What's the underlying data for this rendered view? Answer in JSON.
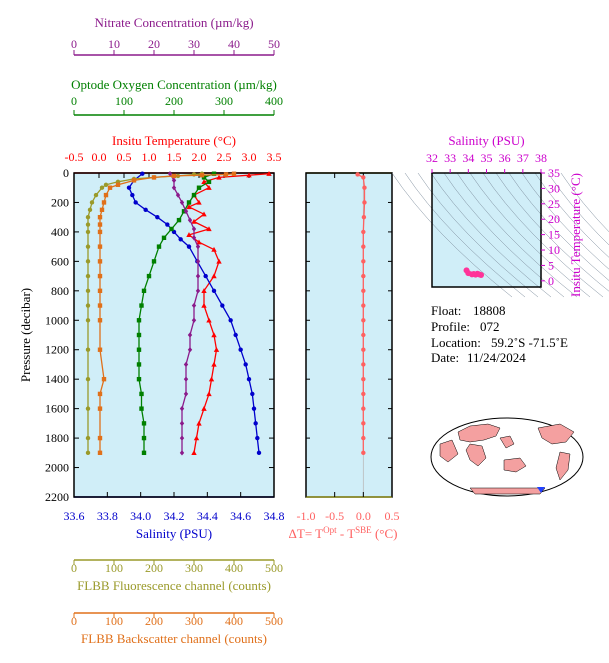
{
  "chart_data": [
    {
      "type": "line",
      "y_axis": {
        "label": "Pressure (decibar)",
        "range": [
          0,
          2200
        ],
        "ticks": [
          0,
          200,
          400,
          600,
          800,
          1000,
          1200,
          1400,
          1600,
          1800,
          2000,
          2200
        ],
        "inverted": true
      },
      "x_axes": [
        {
          "key": "nitrate",
          "label": "Nitrate Concentration (µm/kg)",
          "range": [
            0,
            50
          ],
          "ticks": [
            0,
            10,
            20,
            30,
            40,
            50
          ],
          "color": "#8b1a8b"
        },
        {
          "key": "oxygen",
          "label": "Optode Oxygen Concentration (µm/kg)",
          "range": [
            0,
            400
          ],
          "ticks": [
            0,
            100,
            200,
            300,
            400
          ],
          "color": "#008000"
        },
        {
          "key": "temperature",
          "label": "Insitu Temperature (°C)",
          "range": [
            -0.5,
            3.5
          ],
          "ticks": [
            -0.5,
            0.0,
            0.5,
            1.0,
            1.5,
            2.0,
            2.5,
            3.0,
            3.5
          ],
          "color": "#ff0000"
        },
        {
          "key": "salinity",
          "label": "Salinity (PSU)",
          "range": [
            33.6,
            34.8
          ],
          "ticks": [
            33.6,
            33.8,
            34.0,
            34.2,
            34.4,
            34.6,
            34.8
          ],
          "color": "#0000cc"
        },
        {
          "key": "fluorescence",
          "label": "FLBB Fluorescence channel (counts)",
          "range": [
            0,
            500
          ],
          "ticks": [
            0,
            100,
            200,
            300,
            400,
            500
          ],
          "color": "#9a9a2a"
        },
        {
          "key": "backscatter",
          "label": "FLBB Backscatter channel (counts)",
          "range": [
            0,
            500
          ],
          "ticks": [
            0,
            100,
            200,
            300,
            400,
            500
          ],
          "color": "#e0701a"
        }
      ],
      "series": [
        {
          "key": "temperature",
          "axis": "temperature",
          "color": "#ff0000",
          "marker": "triangle",
          "points": [
            [
              3.4,
              5
            ],
            [
              3.0,
              15
            ],
            [
              2.4,
              30
            ],
            [
              2.1,
              60
            ],
            [
              2.2,
              100
            ],
            [
              1.9,
              150
            ],
            [
              2.0,
              200
            ],
            [
              1.8,
              230
            ],
            [
              2.1,
              280
            ],
            [
              1.9,
              330
            ],
            [
              2.2,
              380
            ],
            [
              1.8,
              420
            ],
            [
              2.0,
              470
            ],
            [
              2.3,
              520
            ],
            [
              2.4,
              600
            ],
            [
              2.3,
              700
            ],
            [
              2.1,
              800
            ],
            [
              2.1,
              900
            ],
            [
              2.2,
              1000
            ],
            [
              2.3,
              1100
            ],
            [
              2.35,
              1200
            ],
            [
              2.3,
              1300
            ],
            [
              2.25,
              1400
            ],
            [
              2.2,
              1500
            ],
            [
              2.1,
              1600
            ],
            [
              2.0,
              1700
            ],
            [
              1.95,
              1800
            ],
            [
              1.9,
              1900
            ]
          ]
        },
        {
          "key": "salinity",
          "axis": "salinity",
          "color": "#0000cc",
          "marker": "circle",
          "points": [
            [
              34.01,
              5
            ],
            [
              33.96,
              50
            ],
            [
              33.93,
              100
            ],
            [
              33.95,
              150
            ],
            [
              33.97,
              200
            ],
            [
              34.03,
              250
            ],
            [
              34.1,
              300
            ],
            [
              34.16,
              350
            ],
            [
              34.2,
              400
            ],
            [
              34.24,
              450
            ],
            [
              34.29,
              500
            ],
            [
              34.34,
              600
            ],
            [
              34.39,
              700
            ],
            [
              34.44,
              800
            ],
            [
              34.49,
              900
            ],
            [
              34.54,
              1000
            ],
            [
              34.57,
              1100
            ],
            [
              34.6,
              1200
            ],
            [
              34.63,
              1300
            ],
            [
              34.65,
              1400
            ],
            [
              34.67,
              1500
            ],
            [
              34.68,
              1600
            ],
            [
              34.69,
              1700
            ],
            [
              34.7,
              1800
            ],
            [
              34.71,
              1900
            ]
          ]
        },
        {
          "key": "oxygen",
          "axis": "oxygen",
          "color": "#008000",
          "marker": "square",
          "points": [
            [
              280,
              5
            ],
            [
              260,
              30
            ],
            [
              270,
              60
            ],
            [
              250,
              100
            ],
            [
              240,
              150
            ],
            [
              230,
              200
            ],
            [
              220,
              260
            ],
            [
              210,
              320
            ],
            [
              195,
              380
            ],
            [
              180,
              440
            ],
            [
              170,
              500
            ],
            [
              160,
              600
            ],
            [
              150,
              700
            ],
            [
              140,
              800
            ],
            [
              135,
              900
            ],
            [
              130,
              1000
            ],
            [
              130,
              1100
            ],
            [
              130,
              1200
            ],
            [
              130,
              1300
            ],
            [
              130,
              1400
            ],
            [
              135,
              1500
            ],
            [
              135,
              1600
            ],
            [
              140,
              1700
            ],
            [
              140,
              1800
            ],
            [
              140,
              1900
            ]
          ]
        },
        {
          "key": "nitrate",
          "axis": "nitrate",
          "color": "#8b1a8b",
          "marker": "diamond",
          "points": [
            [
              24,
              5
            ],
            [
              25,
              50
            ],
            [
              25,
              100
            ],
            [
              26,
              150
            ],
            [
              27,
              200
            ],
            [
              28,
              260
            ],
            [
              29,
              320
            ],
            [
              30,
              380
            ],
            [
              30,
              440
            ],
            [
              31,
              500
            ],
            [
              31,
              600
            ],
            [
              31,
              700
            ],
            [
              31,
              800
            ],
            [
              30,
              900
            ],
            [
              30,
              1000
            ],
            [
              29,
              1100
            ],
            [
              29,
              1200
            ],
            [
              28,
              1300
            ],
            [
              28,
              1400
            ],
            [
              28,
              1500
            ],
            [
              27,
              1600
            ],
            [
              27,
              1700
            ],
            [
              27,
              1800
            ],
            [
              27,
              1900
            ]
          ]
        },
        {
          "key": "fluorescence",
          "axis": "fluorescence",
          "color": "#9a9a2a",
          "marker": "circle",
          "points": [
            [
              320,
              5
            ],
            [
              300,
              10
            ],
            [
              260,
              20
            ],
            [
              200,
              30
            ],
            [
              150,
              40
            ],
            [
              110,
              60
            ],
            [
              80,
              80
            ],
            [
              70,
              100
            ],
            [
              55,
              150
            ],
            [
              45,
              200
            ],
            [
              40,
              250
            ],
            [
              35,
              300
            ],
            [
              35,
              350
            ],
            [
              35,
              400
            ],
            [
              35,
              500
            ],
            [
              35,
              600
            ],
            [
              35,
              700
            ],
            [
              35,
              800
            ],
            [
              35,
              900
            ],
            [
              35,
              1000
            ],
            [
              35,
              1200
            ],
            [
              35,
              1400
            ],
            [
              35,
              1600
            ],
            [
              35,
              1800
            ],
            [
              35,
              1900
            ]
          ]
        },
        {
          "key": "backscatter",
          "axis": "backscatter",
          "color": "#e0701a",
          "marker": "square",
          "points": [
            [
              400,
              5
            ],
            [
              380,
              10
            ],
            [
              320,
              15
            ],
            [
              250,
              20
            ],
            [
              200,
              30
            ],
            [
              150,
              50
            ],
            [
              110,
              80
            ],
            [
              90,
              100
            ],
            [
              80,
              150
            ],
            [
              75,
              200
            ],
            [
              70,
              250
            ],
            [
              65,
              300
            ],
            [
              65,
              350
            ],
            [
              65,
              400
            ],
            [
              65,
              500
            ],
            [
              65,
              600
            ],
            [
              65,
              700
            ],
            [
              65,
              800
            ],
            [
              65,
              900
            ],
            [
              65,
              1000
            ],
            [
              65,
              1200
            ],
            [
              75,
              1400
            ],
            [
              65,
              1500
            ],
            [
              65,
              1600
            ],
            [
              65,
              1800
            ],
            [
              65,
              1900
            ]
          ]
        }
      ]
    },
    {
      "type": "line",
      "x_axis": {
        "label_prefix": "ΔT= T",
        "sup1": "Opt",
        "label_mid": " - T",
        "sup2": "SBE",
        "label_suffix": " (°C)",
        "range": [
          -1.0,
          0.5
        ],
        "ticks": [
          -1.0,
          -0.5,
          0.0,
          0.5
        ],
        "color": "#ff6060"
      },
      "y_axis": {
        "range": [
          0,
          2200
        ],
        "inverted": true
      },
      "series": [
        {
          "key": "delta_t",
          "color": "#ff6060",
          "marker": "circle",
          "points": [
            [
              -0.1,
              10
            ],
            [
              0.0,
              30
            ],
            [
              0.02,
              100
            ],
            [
              0.02,
              200
            ],
            [
              0.01,
              300
            ],
            [
              0.0,
              400
            ],
            [
              0.0,
              500
            ],
            [
              0.0,
              600
            ],
            [
              0.0,
              700
            ],
            [
              0.0,
              800
            ],
            [
              0.0,
              900
            ],
            [
              0.0,
              1000
            ],
            [
              0.0,
              1100
            ],
            [
              0.0,
              1200
            ],
            [
              0.0,
              1300
            ],
            [
              0.0,
              1400
            ],
            [
              0.0,
              1500
            ],
            [
              0.0,
              1600
            ],
            [
              0.0,
              1700
            ],
            [
              0.0,
              1800
            ],
            [
              0.0,
              1900
            ]
          ]
        }
      ]
    },
    {
      "type": "scatter",
      "x_axis": {
        "label": "Salinity (PSU)",
        "range": [
          32,
          38
        ],
        "ticks": [
          32,
          33,
          34,
          35,
          36,
          37,
          38
        ],
        "color": "#cc00cc"
      },
      "y_axis": {
        "label": "Insitu Temperature (°C)",
        "range": [
          -2,
          35
        ],
        "ticks": [
          0,
          5,
          10,
          15,
          20,
          25,
          30,
          35
        ],
        "color": "#cc00cc"
      },
      "points": [
        [
          33.9,
          3.4
        ],
        [
          34.0,
          2.5
        ],
        [
          34.2,
          2.1
        ],
        [
          34.4,
          2.0
        ],
        [
          34.6,
          2.1
        ],
        [
          34.7,
          1.9
        ],
        [
          34.5,
          2.3
        ],
        [
          34.3,
          2.2
        ]
      ],
      "point_color": "#ff3399"
    }
  ],
  "info": {
    "float_label": "Float:",
    "float_value": "18808",
    "profile_label": "Profile:",
    "profile_value": "072",
    "location_label": "Location:",
    "location_value": "59.2˚S  -71.5˚E",
    "date_label": "Date:",
    "date_value": "11/24/2024"
  },
  "map": {
    "location_marker_color": "#2040ff",
    "land_color": "#f4a0a0",
    "ocean_color": "#ffffff"
  },
  "colors": {
    "panel_bg": "#d0eef8",
    "frame": "#000000"
  }
}
